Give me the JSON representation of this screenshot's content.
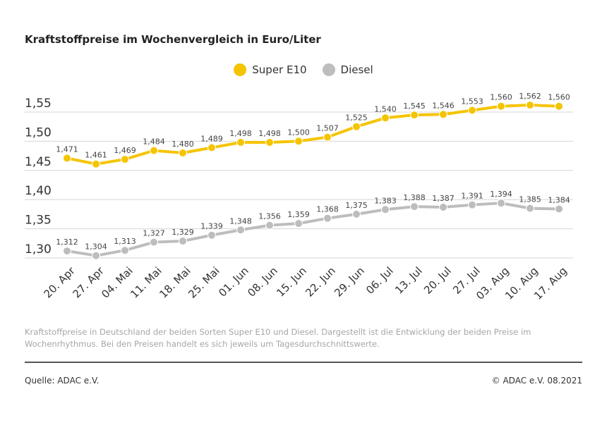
{
  "chart_data": {
    "type": "line",
    "title": "Kraftstoffpreise im Wochenvergleich in Euro/Liter",
    "categories": [
      "20. Apr",
      "27. Apr",
      "04. Mai",
      "11. Mai",
      "18. Mai",
      "25. Mai",
      "01. Jun",
      "08. Jun",
      "15. Jun",
      "22. Jun",
      "29. Jun",
      "06. Jul",
      "13. Jul",
      "20. Jul",
      "27. Jul",
      "03. Aug",
      "10. Aug",
      "17. Aug"
    ],
    "series": [
      {
        "name": "Super E10",
        "color": "#f5c400",
        "values": [
          1.471,
          1.461,
          1.469,
          1.484,
          1.48,
          1.489,
          1.498,
          1.498,
          1.5,
          1.507,
          1.525,
          1.54,
          1.545,
          1.546,
          1.553,
          1.56,
          1.562,
          1.56
        ]
      },
      {
        "name": "Diesel",
        "color": "#bdbdbd",
        "values": [
          1.312,
          1.304,
          1.313,
          1.327,
          1.329,
          1.339,
          1.348,
          1.356,
          1.359,
          1.368,
          1.375,
          1.383,
          1.388,
          1.387,
          1.391,
          1.394,
          1.385,
          1.384
        ]
      }
    ],
    "yticks": [
      "1,30",
      "1,35",
      "1,40",
      "1,45",
      "1,50",
      "1,55"
    ],
    "ylim": [
      1.3,
      1.55
    ],
    "grid": true,
    "legend": "top-center",
    "decimal_separator": ","
  },
  "note": "Kraftstoffpreise in Deutschland der beiden Sorten Super E10 und Diesel. Dargestellt ist die Entwicklung der beiden Preise im Wochenrhythmus. Bei den Preisen handelt es sich jeweils um Tagesdurchschnittswerte.",
  "source": "Quelle: ADAC e.V.",
  "copyright": "© ADAC e.V. 08.2021"
}
